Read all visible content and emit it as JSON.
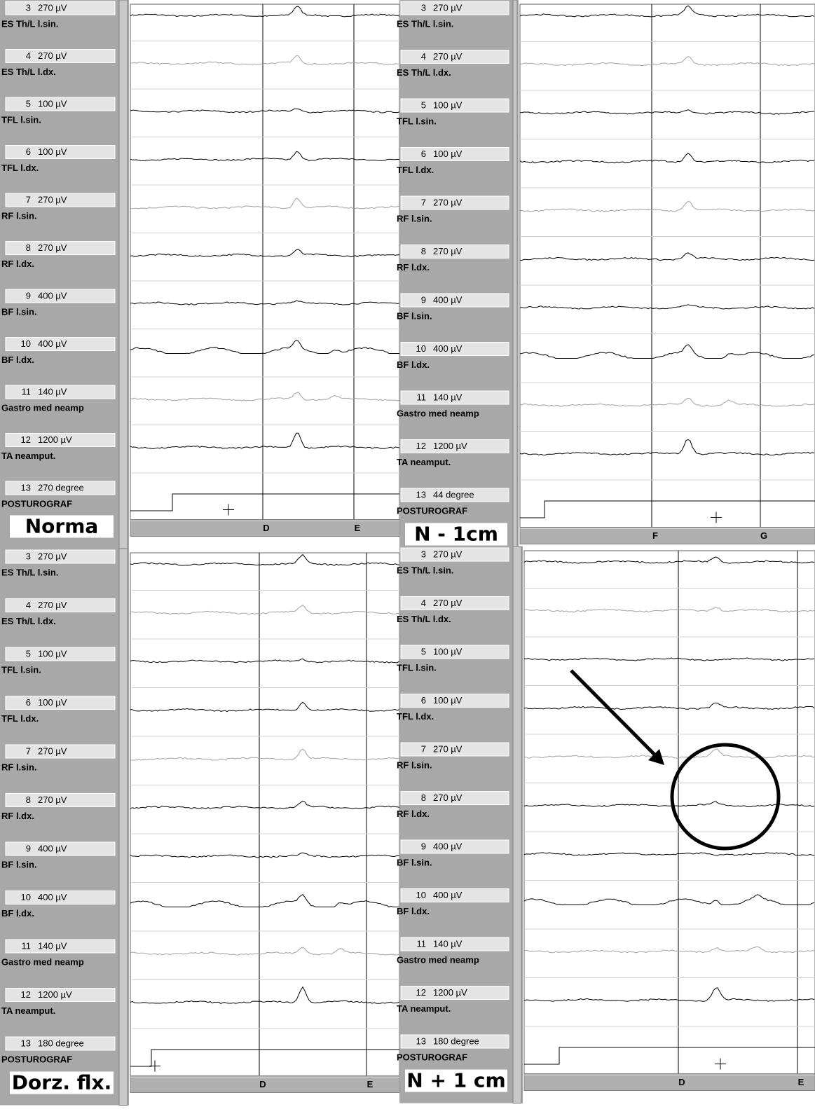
{
  "panels": [
    {
      "label": "Norma",
      "markers": [
        "D",
        "E"
      ],
      "channels": [
        {
          "num": "3",
          "scale": "270 µV",
          "name": "ES Th/L l.sin."
        },
        {
          "num": "4",
          "scale": "270 µV",
          "name": "ES Th/L l.dx."
        },
        {
          "num": "5",
          "scale": "100 µV",
          "name": "TFL l.sin."
        },
        {
          "num": "6",
          "scale": "100 µV",
          "name": "TFL l.dx."
        },
        {
          "num": "7",
          "scale": "270 µV",
          "name": "RF l.sin."
        },
        {
          "num": "8",
          "scale": "270 µV",
          "name": "RF l.dx."
        },
        {
          "num": "9",
          "scale": "400 µV",
          "name": "BF l.sin."
        },
        {
          "num": "10",
          "scale": "400 µV",
          "name": "BF l.dx."
        },
        {
          "num": "11",
          "scale": "140 µV",
          "name": "Gastro med neamp"
        },
        {
          "num": "12",
          "scale": "1200 µV",
          "name": "TA neamput."
        },
        {
          "num": "13",
          "scale": "270 degree",
          "name": "POSTUROGRAF"
        }
      ]
    },
    {
      "label": "N - 1cm",
      "markers": [
        "F",
        "G"
      ],
      "channels": [
        {
          "num": "3",
          "scale": "270 µV",
          "name": "ES Th/L l.sin."
        },
        {
          "num": "4",
          "scale": "270 µV",
          "name": "ES Th/L l.dx."
        },
        {
          "num": "5",
          "scale": "100 µV",
          "name": "TFL l.sin."
        },
        {
          "num": "6",
          "scale": "100 µV",
          "name": "TFL l.dx."
        },
        {
          "num": "7",
          "scale": "270 µV",
          "name": "RF l.sin."
        },
        {
          "num": "8",
          "scale": "270 µV",
          "name": "RF l.dx."
        },
        {
          "num": "9",
          "scale": "400 µV",
          "name": "BF l.sin."
        },
        {
          "num": "10",
          "scale": "400 µV",
          "name": "BF l.dx."
        },
        {
          "num": "11",
          "scale": "140 µV",
          "name": "Gastro med neamp"
        },
        {
          "num": "12",
          "scale": "1200 µV",
          "name": "TA neamput."
        },
        {
          "num": "13",
          "scale": "44 degree",
          "name": "POSTUROGRAF"
        }
      ]
    },
    {
      "label": "Dorz. flx.",
      "markers": [
        "D",
        "E"
      ],
      "channels": [
        {
          "num": "3",
          "scale": "270 µV",
          "name": "ES Th/L l.sin."
        },
        {
          "num": "4",
          "scale": "270 µV",
          "name": "ES Th/L l.dx."
        },
        {
          "num": "5",
          "scale": "100 µV",
          "name": "TFL l.sin."
        },
        {
          "num": "6",
          "scale": "100 µV",
          "name": "TFL l.dx."
        },
        {
          "num": "7",
          "scale": "270 µV",
          "name": "RF l.sin."
        },
        {
          "num": "8",
          "scale": "270 µV",
          "name": "RF l.dx."
        },
        {
          "num": "9",
          "scale": "400 µV",
          "name": "BF l.sin."
        },
        {
          "num": "10",
          "scale": "400 µV",
          "name": "BF l.dx."
        },
        {
          "num": "11",
          "scale": "140 µV",
          "name": "Gastro med neamp"
        },
        {
          "num": "12",
          "scale": "1200 µV",
          "name": "TA neamput."
        },
        {
          "num": "13",
          "scale": "180 degree",
          "name": "POSTUROGRAF"
        }
      ]
    },
    {
      "label": "N + 1 cm",
      "markers": [
        "D",
        "E"
      ],
      "channels": [
        {
          "num": "3",
          "scale": "270 µV",
          "name": "ES Th/L l.sin."
        },
        {
          "num": "4",
          "scale": "270 µV",
          "name": "ES Th/L l.dx."
        },
        {
          "num": "5",
          "scale": "100 µV",
          "name": "TFL l.sin."
        },
        {
          "num": "6",
          "scale": "100 µV",
          "name": "TFL l.dx."
        },
        {
          "num": "7",
          "scale": "270 µV",
          "name": "RF l.sin."
        },
        {
          "num": "8",
          "scale": "270 µV",
          "name": "RF l.dx."
        },
        {
          "num": "9",
          "scale": "400 µV",
          "name": "BF l.sin."
        },
        {
          "num": "10",
          "scale": "400 µV",
          "name": "BF l.dx."
        },
        {
          "num": "11",
          "scale": "140 µV",
          "name": "Gastro med neamp"
        },
        {
          "num": "12",
          "scale": "1200 µV",
          "name": "TA neamput."
        },
        {
          "num": "13",
          "scale": "180 degree",
          "name": "POSTUROGRAF"
        }
      ]
    }
  ]
}
